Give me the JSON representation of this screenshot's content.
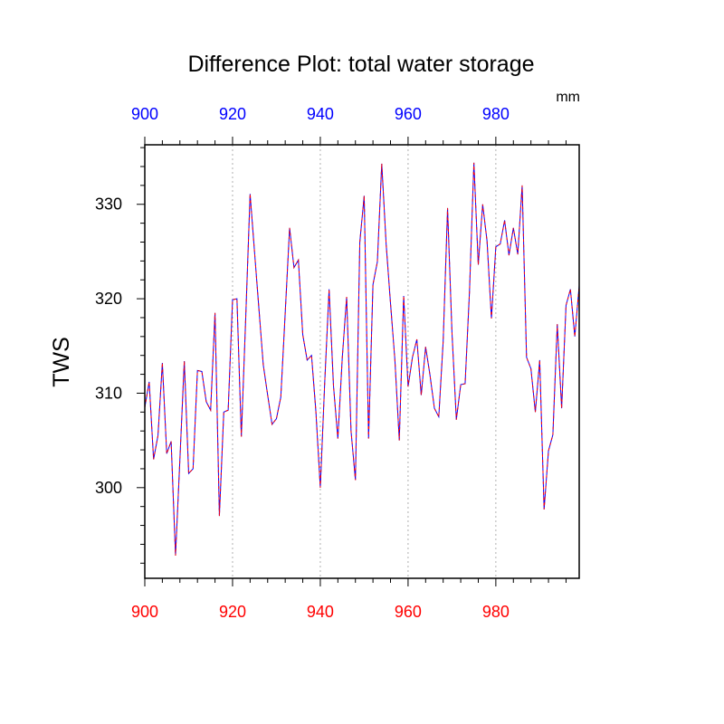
{
  "chart_data": {
    "type": "line",
    "title": "Difference Plot: total water storage",
    "units": "mm",
    "ylabel": "TWS",
    "xlim": [
      900,
      999
    ],
    "ylim": [
      290.4,
      336.3
    ],
    "x_major_ticks": [
      900,
      920,
      940,
      960,
      980
    ],
    "y_major_ticks": [
      300,
      310,
      320,
      330
    ],
    "bottom_axis_color": "#ff0000",
    "top_axis_color": "#0000ff",
    "vertical_grid": "dotted",
    "series": [
      {
        "color_overlay": "#ff0000",
        "color_base": "#0000ff",
        "x_start": 900,
        "values": [
          308.5,
          311.2,
          303.0,
          305.5,
          313.2,
          303.6,
          304.9,
          292.8,
          303.0,
          313.4,
          301.5,
          302.0,
          312.4,
          312.3,
          309.1,
          308.2,
          318.5,
          297.0,
          308.0,
          308.2,
          319.9,
          320.0,
          305.4,
          318.0,
          331.1,
          325.0,
          319.0,
          313.0,
          309.8,
          306.7,
          307.3,
          309.6,
          318.5,
          327.5,
          323.3,
          324.1,
          316.2,
          313.5,
          314.0,
          308.0,
          300.0,
          311.1,
          321.0,
          310.8,
          305.2,
          313.7,
          320.2,
          306.0,
          300.8,
          326.0,
          330.9,
          305.2,
          321.5,
          323.9,
          334.3,
          325.8,
          319.5,
          313.5,
          305.0,
          320.3,
          310.7,
          313.8,
          315.7,
          309.8,
          314.9,
          311.9,
          308.4,
          307.5,
          315.5,
          329.6,
          316.5,
          307.2,
          310.9,
          311.0,
          320.8,
          334.4,
          323.6,
          330.0,
          326.1,
          317.9,
          325.5,
          325.8,
          328.3,
          324.6,
          327.5,
          324.7,
          332.0,
          313.8,
          312.6,
          308.0,
          313.5,
          297.7,
          303.9,
          305.6,
          317.3,
          308.4,
          319.3,
          321.0,
          316.0,
          321.4
        ]
      }
    ]
  }
}
